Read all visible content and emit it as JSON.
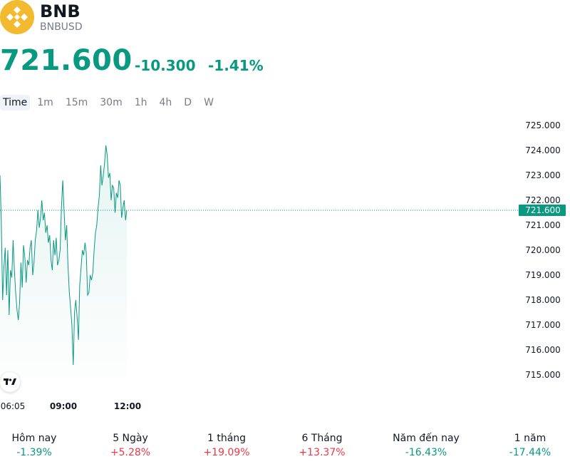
{
  "header": {
    "symbol": "BNB",
    "ticker": "BNBUSD",
    "price": "721.600",
    "change": "-10.300",
    "change_pct": "-1.41%"
  },
  "intervals": [
    "Time",
    "1m",
    "15m",
    "30m",
    "1h",
    "4h",
    "D",
    "W"
  ],
  "colors": {
    "line": "#089981",
    "current_price_bg": "#089981",
    "logo": "#F3BA2F"
  },
  "performance": [
    {
      "label": "Hôm nay",
      "value": "-1.39%",
      "direction": "neg"
    },
    {
      "label": "5 Ngày",
      "value": "+5.28%",
      "direction": "pos"
    },
    {
      "label": "1 tháng",
      "value": "+19.09%",
      "direction": "pos"
    },
    {
      "label": "6 Tháng",
      "value": "+13.37%",
      "direction": "pos"
    },
    {
      "label": "Năm đến nay",
      "value": "-16.43%",
      "direction": "neg"
    },
    {
      "label": "1 năm",
      "value": "-17.44%",
      "direction": "neg"
    }
  ],
  "chart_data": {
    "type": "area",
    "y_ticks": [
      "725.000",
      "724.000",
      "723.000",
      "722.000",
      "721.000",
      "720.000",
      "719.000",
      "718.000",
      "717.000",
      "716.000",
      "715.000"
    ],
    "ylim": [
      715,
      725
    ],
    "x_ticks": [
      {
        "label": "06:05",
        "bold": false
      },
      {
        "label": "09:00",
        "bold": true
      },
      {
        "label": "12:00",
        "bold": true
      }
    ],
    "current_price": 721.6,
    "current_price_label": "721.600",
    "values": [
      723.0,
      721.2,
      718.0,
      719.3,
      720.1,
      718.2,
      720.0,
      717.4,
      719.2,
      718.9,
      720.4,
      719.2,
      718.3,
      717.6,
      717.2,
      717.9,
      719.5,
      718.5,
      720.2,
      719.7,
      718.7,
      719.6,
      719.4,
      720.1,
      720.4,
      719.0,
      719.5,
      720.4,
      720.8,
      721.6,
      720.9,
      721.3,
      722.0,
      721.2,
      721.5,
      720.7,
      721.0,
      720.3,
      720.6,
      719.6,
      719.2,
      720.4,
      719.8,
      720.5,
      719.4,
      719.6,
      720.0,
      721.7,
      722.8,
      721.6,
      720.4,
      721.0,
      719.4,
      718.3,
      717.7,
      717.0,
      715.4,
      717.5,
      718.0,
      717.3,
      716.4,
      718.6,
      719.3,
      720.0,
      719.8,
      720.3,
      719.9,
      718.2,
      718.3,
      719.0,
      718.8,
      719.1,
      720.0,
      720.7,
      721.0,
      721.7,
      722.2,
      723.4,
      722.6,
      723.0,
      723.5,
      724.2,
      723.8,
      722.9,
      723.1,
      722.0,
      722.6,
      722.5,
      721.5,
      722.3,
      722.1,
      722.8,
      722.6,
      721.3,
      721.7,
      722.0,
      721.2,
      721.6
    ]
  }
}
